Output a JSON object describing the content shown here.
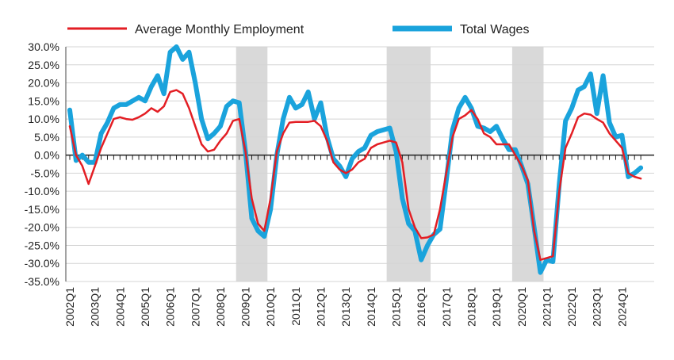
{
  "chart_data": {
    "type": "line",
    "x_label_years": [
      "2002",
      "2003",
      "2004",
      "2005",
      "2006",
      "2007",
      "2008",
      "2009",
      "2010",
      "2011",
      "2012",
      "2013",
      "2014",
      "2015",
      "2016",
      "2017",
      "2018",
      "2019",
      "2020",
      "2021",
      "2022",
      "2023",
      "2024"
    ],
    "x_label_suffix": "Q1",
    "ylim": [
      -35,
      30
    ],
    "yticks": [
      30,
      25,
      20,
      15,
      10,
      5,
      0,
      -5,
      -10,
      -15,
      -20,
      -25,
      -30,
      -35
    ],
    "ytick_labels": [
      "30.0%",
      "25.0%",
      "20.0%",
      "15.0%",
      "10.0%",
      "5.0%",
      "0.0%",
      "-5.0%",
      "-10.0%",
      "-15.0%",
      "-20.0%",
      "-25.0%",
      "-30.0%",
      "-35.0%"
    ],
    "grid": true,
    "legend_position": "top",
    "shaded_periods": [
      {
        "start": "2008Q4",
        "end": "2009Q4"
      },
      {
        "start": "2014Q4",
        "end": "2016Q2"
      },
      {
        "start": "2019Q4",
        "end": "2020Q4"
      }
    ],
    "series": [
      {
        "name": "Average Monthly Employment",
        "color": "#e31e24",
        "values": [
          8,
          0,
          -3,
          -8,
          -3,
          2,
          6,
          10,
          10.5,
          10,
          9.8,
          10.5,
          11.5,
          13,
          12,
          13.5,
          17.5,
          18,
          17,
          13,
          8,
          3,
          1,
          1.5,
          4,
          6,
          9.5,
          10,
          1,
          -12,
          -19,
          -21,
          -12,
          1,
          6,
          9,
          9.2,
          9.2,
          9.2,
          9.5,
          8,
          4,
          -2,
          -4,
          -5,
          -4,
          -2,
          -1,
          2,
          3,
          3.5,
          4,
          3.5,
          -2,
          -15,
          -20,
          -23,
          -22.8,
          -22,
          -15,
          -5,
          5,
          10,
          11,
          12.5,
          10,
          6,
          5,
          3,
          3,
          3,
          0,
          -3,
          -7,
          -21,
          -29,
          -28.5,
          -28,
          -10,
          2,
          6,
          10.5,
          11.5,
          11.2,
          10,
          9,
          6,
          4,
          2,
          -5,
          -6,
          -6.5
        ]
      },
      {
        "name": "Total Wages",
        "color": "#1aa3dc",
        "values": [
          12.5,
          -1.5,
          0,
          -2,
          -2,
          6,
          9,
          13,
          14,
          14,
          15,
          16,
          15,
          19,
          22,
          17,
          28.5,
          30,
          26.5,
          28.5,
          20,
          10,
          4.5,
          6,
          8,
          13.5,
          15,
          14.5,
          1,
          -17.5,
          -21,
          -22.5,
          -15,
          0,
          10,
          16,
          13,
          14,
          17.5,
          10,
          14.5,
          5,
          -1,
          -3,
          -6,
          -1,
          1,
          2,
          5.5,
          6.5,
          7,
          7.5,
          1,
          -12,
          -19,
          -21,
          -29,
          -25,
          -22,
          -20.5,
          -7,
          7,
          13,
          16,
          13,
          8,
          7.5,
          6.5,
          8,
          4.5,
          1.5,
          1.5,
          -3,
          -8,
          -20,
          -32.5,
          -29,
          -29.5,
          -8,
          9.5,
          13,
          18,
          19,
          22.5,
          11.5,
          22,
          9,
          5,
          5.5,
          -6,
          -5,
          -3.5
        ]
      }
    ]
  }
}
